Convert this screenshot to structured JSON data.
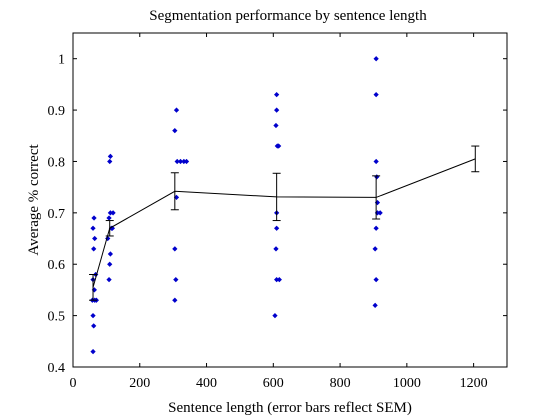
{
  "chart_data": {
    "type": "scatter",
    "title": "Segmentation performance by sentence length",
    "xlabel": "Sentence length (error bars reflect SEM)",
    "ylabel": "Average % correct",
    "xlim": [
      0,
      1300
    ],
    "ylim": [
      0.4,
      1.05
    ],
    "xticks": [
      0,
      200,
      400,
      600,
      800,
      1000,
      1200
    ],
    "yticks": [
      0.4,
      0.5,
      0.6,
      0.7,
      0.8,
      0.9,
      1
    ],
    "grid": false,
    "colors": {
      "points": "#0000cc",
      "line": "#000000"
    },
    "series": [
      {
        "type": "scatter",
        "points": [
          [
            60,
            0.43
          ],
          [
            62,
            0.48
          ],
          [
            60,
            0.5
          ],
          [
            58,
            0.53
          ],
          [
            65,
            0.53
          ],
          [
            70,
            0.53
          ],
          [
            64,
            0.55
          ],
          [
            60,
            0.57
          ],
          [
            68,
            0.58
          ],
          [
            62,
            0.63
          ],
          [
            65,
            0.65
          ],
          [
            60,
            0.67
          ],
          [
            63,
            0.69
          ],
          [
            108,
            0.57
          ],
          [
            110,
            0.6
          ],
          [
            112,
            0.62
          ],
          [
            104,
            0.65
          ],
          [
            115,
            0.67
          ],
          [
            118,
            0.67
          ],
          [
            108,
            0.69
          ],
          [
            112,
            0.7
          ],
          [
            120,
            0.7
          ],
          [
            110,
            0.8
          ],
          [
            112,
            0.81
          ],
          [
            305,
            0.53
          ],
          [
            308,
            0.57
          ],
          [
            305,
            0.63
          ],
          [
            310,
            0.73
          ],
          [
            312,
            0.8
          ],
          [
            322,
            0.8
          ],
          [
            332,
            0.8
          ],
          [
            340,
            0.8
          ],
          [
            305,
            0.86
          ],
          [
            310,
            0.9
          ],
          [
            605,
            0.5
          ],
          [
            610,
            0.57
          ],
          [
            618,
            0.57
          ],
          [
            608,
            0.63
          ],
          [
            610,
            0.67
          ],
          [
            610,
            0.7
          ],
          [
            612,
            0.83
          ],
          [
            616,
            0.83
          ],
          [
            608,
            0.87
          ],
          [
            610,
            0.9
          ],
          [
            610,
            0.93
          ],
          [
            905,
            0.52
          ],
          [
            908,
            0.57
          ],
          [
            905,
            0.63
          ],
          [
            908,
            0.67
          ],
          [
            912,
            0.7
          ],
          [
            920,
            0.7
          ],
          [
            912,
            0.72
          ],
          [
            910,
            0.77
          ],
          [
            908,
            0.8
          ],
          [
            908,
            0.93
          ],
          [
            908,
            1.0
          ]
        ]
      },
      {
        "type": "line",
        "x": [
          60,
          110,
          305,
          610,
          908,
          1205
        ],
        "y": [
          0.555,
          0.67,
          0.742,
          0.731,
          0.73,
          0.805
        ],
        "error": [
          0.025,
          0.015,
          0.036,
          0.046,
          0.042,
          0.025
        ]
      }
    ]
  }
}
